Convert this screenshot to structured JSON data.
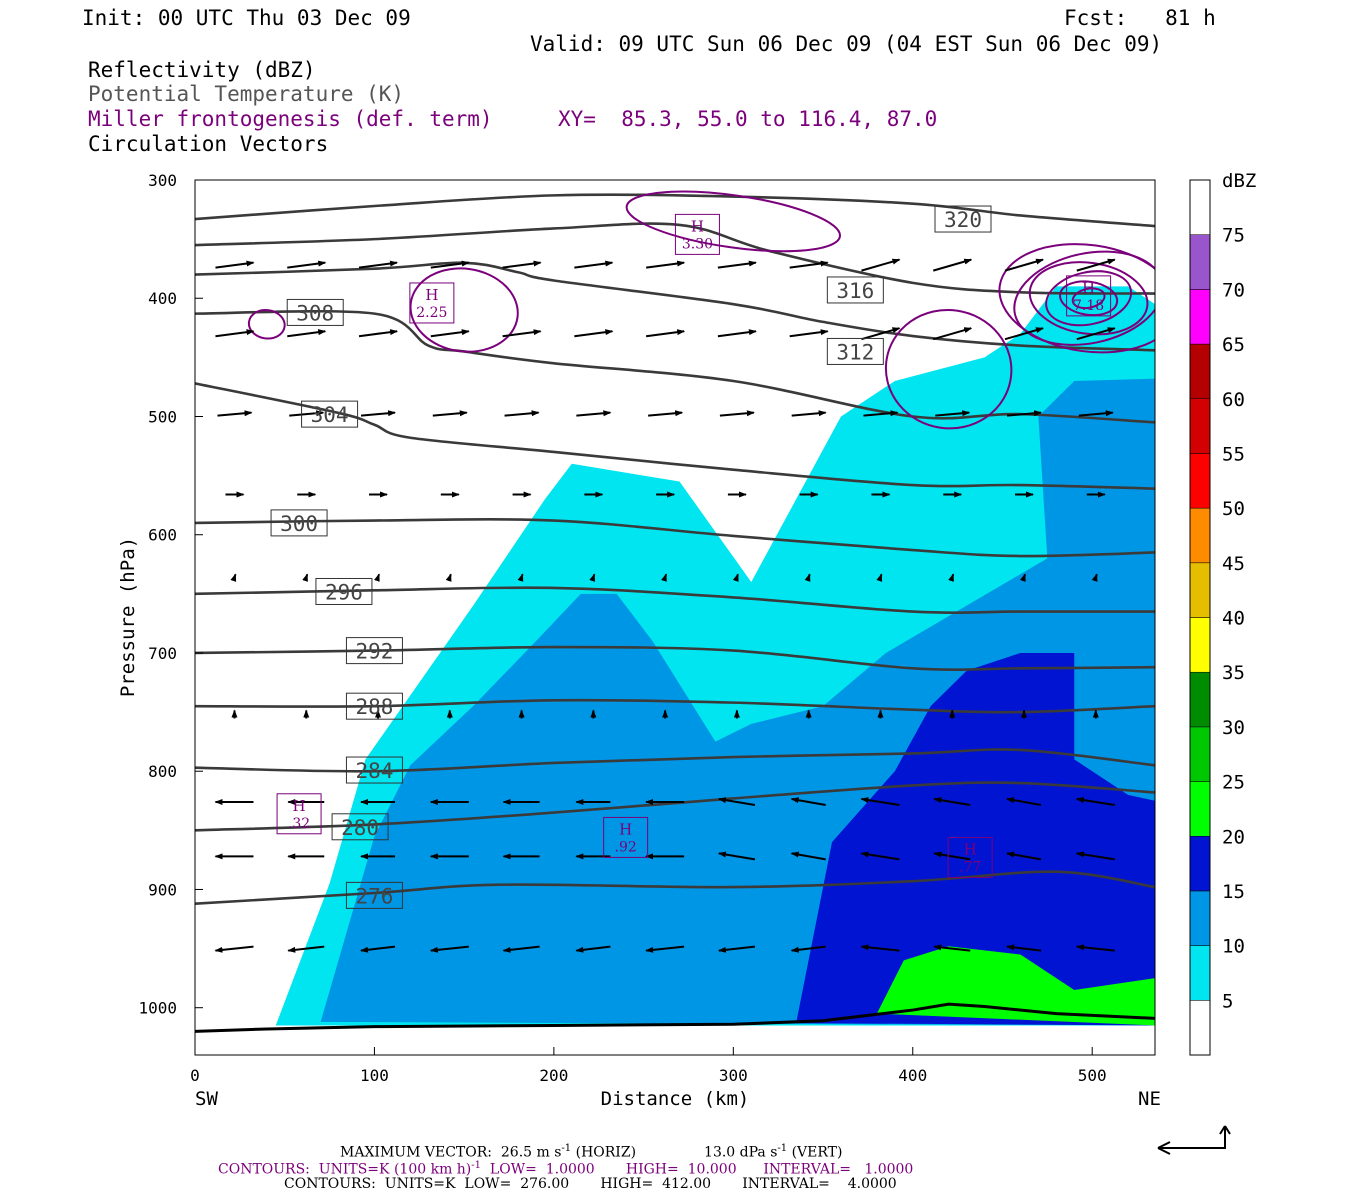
{
  "header": {
    "init": "Init: 00 UTC Thu 03 Dec 09",
    "fcst": "Fcst:   81 h",
    "valid": "Valid: 09 UTC Sun 06 Dec 09 (04 EST Sun 06 Dec 09)",
    "field1": "Reflectivity (dBZ)",
    "field2": "Potential Temperature (K)",
    "field3": "Miller frontogenesis (def. term)",
    "xy": "XY=  85.3, 55.0 to 116.4, 87.0",
    "field4": "Circulation Vectors"
  },
  "colors": {
    "theta": "#3a3a3a",
    "miller": "#7b007b",
    "field2_text": "#555555"
  },
  "colorbar": {
    "unit": "dBZ",
    "levels": [
      "5",
      "10",
      "15",
      "20",
      "25",
      "30",
      "35",
      "40",
      "45",
      "50",
      "55",
      "60",
      "65",
      "70",
      "75"
    ],
    "colors": [
      "#ffffff",
      "#00e5ef",
      "#0096e6",
      "#0014d2",
      "#00ff00",
      "#00c800",
      "#008c00",
      "#ffff00",
      "#e6be00",
      "#ff8c00",
      "#ff0000",
      "#d20000",
      "#b40000",
      "#ff00ff",
      "#9955cc",
      "#ffffff"
    ]
  },
  "chart_data": {
    "type": "cross-section",
    "xlabel": "Distance (km)",
    "ylabel": "Pressure (hPa)",
    "xlim": [
      0,
      535
    ],
    "ylim": [
      300,
      1040
    ],
    "x_ticks": [
      "0",
      "100",
      "200",
      "300",
      "400",
      "500"
    ],
    "y_ticks": [
      "300",
      "400",
      "500",
      "600",
      "700",
      "800",
      "900",
      "1000"
    ],
    "left_end_label": "SW",
    "right_end_label": "NE",
    "theta_contours": [
      {
        "label": "276",
        "points": [
          [
            0,
            912
          ],
          [
            100,
            903
          ],
          [
            170,
            896
          ],
          [
            300,
            898
          ],
          [
            400,
            893
          ],
          [
            480,
            885
          ],
          [
            535,
            898
          ]
        ],
        "label_at": [
          100,
          905
        ]
      },
      {
        "label": "280",
        "points": [
          [
            0,
            850
          ],
          [
            100,
            845
          ],
          [
            200,
            835
          ],
          [
            300,
            823
          ],
          [
            400,
            812
          ],
          [
            460,
            810
          ],
          [
            535,
            818
          ]
        ],
        "label_at": [
          92,
          847
        ]
      },
      {
        "label": "284",
        "points": [
          [
            0,
            797
          ],
          [
            100,
            800
          ],
          [
            200,
            793
          ],
          [
            300,
            788
          ],
          [
            400,
            785
          ],
          [
            460,
            782
          ],
          [
            535,
            795
          ]
        ],
        "label_at": [
          100,
          799
        ]
      },
      {
        "label": "288",
        "points": [
          [
            0,
            745
          ],
          [
            100,
            745
          ],
          [
            200,
            740
          ],
          [
            300,
            742
          ],
          [
            400,
            748
          ],
          [
            460,
            750
          ],
          [
            535,
            745
          ]
        ],
        "label_at": [
          100,
          745
        ]
      },
      {
        "label": "292",
        "points": [
          [
            0,
            700
          ],
          [
            100,
            698
          ],
          [
            200,
            695
          ],
          [
            300,
            698
          ],
          [
            400,
            713
          ],
          [
            460,
            713
          ],
          [
            535,
            712
          ]
        ],
        "label_at": [
          100,
          698
        ]
      },
      {
        "label": "296",
        "points": [
          [
            0,
            650
          ],
          [
            100,
            647
          ],
          [
            200,
            645
          ],
          [
            300,
            653
          ],
          [
            400,
            665
          ],
          [
            460,
            665
          ],
          [
            535,
            665
          ]
        ],
        "label_at": [
          83,
          648
        ]
      },
      {
        "label": "300",
        "points": [
          [
            0,
            590
          ],
          [
            100,
            588
          ],
          [
            200,
            588
          ],
          [
            300,
            601
          ],
          [
            400,
            613
          ],
          [
            460,
            618
          ],
          [
            535,
            615
          ]
        ],
        "label_at": [
          58,
          590
        ]
      },
      {
        "label": "304",
        "points": [
          [
            0,
            472
          ],
          [
            80,
            497
          ],
          [
            100,
            507
          ],
          [
            120,
            518
          ],
          [
            200,
            530
          ],
          [
            300,
            545
          ],
          [
            400,
            558
          ],
          [
            460,
            558
          ],
          [
            535,
            561
          ]
        ],
        "label_at": [
          75,
          498
        ]
      },
      {
        "label": "308",
        "points": [
          [
            0,
            413
          ],
          [
            100,
            413
          ],
          [
            130,
            440
          ],
          [
            150,
            445
          ],
          [
            200,
            455
          ],
          [
            300,
            470
          ],
          [
            400,
            500
          ],
          [
            460,
            498
          ],
          [
            535,
            505
          ]
        ],
        "label_at": [
          67,
          412
        ]
      },
      {
        "label": "312",
        "points": [
          [
            0,
            380
          ],
          [
            100,
            375
          ],
          [
            150,
            370
          ],
          [
            180,
            378
          ],
          [
            200,
            385
          ],
          [
            300,
            405
          ],
          [
            350,
            420
          ],
          [
            400,
            432
          ],
          [
            460,
            440
          ],
          [
            535,
            444
          ]
        ],
        "label_at": [
          368,
          445
        ]
      },
      {
        "label": "316",
        "points": [
          [
            0,
            355
          ],
          [
            100,
            350
          ],
          [
            200,
            341
          ],
          [
            270,
            338
          ],
          [
            320,
            360
          ],
          [
            400,
            387
          ],
          [
            460,
            395
          ],
          [
            535,
            396
          ]
        ],
        "label_at": [
          368,
          393
        ]
      },
      {
        "label": "320",
        "points": [
          [
            0,
            333
          ],
          [
            100,
            322
          ],
          [
            200,
            313
          ],
          [
            300,
            314
          ],
          [
            400,
            320
          ],
          [
            460,
            330
          ],
          [
            535,
            339
          ]
        ],
        "label_at": [
          428,
          333
        ]
      }
    ],
    "miller_maxima": [
      {
        "label": "H",
        "value": "3.30",
        "at": [
          280,
          346
        ]
      },
      {
        "label": "H",
        "value": "2.25",
        "at": [
          132,
          404
        ]
      },
      {
        "label": "H",
        "value": "7.18",
        "at": [
          498,
          398
        ]
      },
      {
        "label": "H",
        "value": ".32",
        "at": [
          58,
          836
        ]
      },
      {
        "label": "H",
        "value": ".92",
        "at": [
          240,
          856
        ]
      },
      {
        "label": "H",
        "value": ".77",
        "at": [
          432,
          873
        ]
      }
    ],
    "miller_contours_approx": [
      {
        "center": [
          498,
          400
        ],
        "rings": [
          [
            50,
            45
          ],
          [
            42,
            38
          ],
          [
            33,
            30
          ],
          [
            24,
            22
          ],
          [
            16,
            14
          ],
          [
            9,
            8
          ]
        ]
      },
      {
        "center": [
          150,
          410
        ],
        "rings": [
          [
            30,
            35
          ]
        ]
      },
      {
        "center": [
          300,
          335
        ],
        "rings": [
          [
            60,
            22
          ]
        ]
      },
      {
        "center": [
          40,
          422
        ],
        "rings": [
          [
            10,
            12
          ]
        ]
      },
      {
        "center": [
          420,
          460
        ],
        "rings": [
          [
            35,
            50
          ]
        ]
      }
    ],
    "reflectivity_dbz_regions": [
      {
        "dbz": 5,
        "outline": [
          [
            45,
            1015
          ],
          [
            75,
            895
          ],
          [
            95,
            790
          ],
          [
            155,
            660
          ],
          [
            195,
            570
          ],
          [
            210,
            540
          ],
          [
            270,
            555
          ],
          [
            310,
            640
          ],
          [
            360,
            500
          ],
          [
            390,
            470
          ],
          [
            440,
            450
          ],
          [
            460,
            430
          ],
          [
            480,
            390
          ],
          [
            520,
            390
          ],
          [
            535,
            405
          ],
          [
            535,
            1015
          ]
        ]
      },
      {
        "dbz": 10,
        "outline": [
          [
            70,
            1012
          ],
          [
            100,
            855
          ],
          [
            120,
            795
          ],
          [
            155,
            745
          ],
          [
            190,
            690
          ],
          [
            215,
            650
          ],
          [
            235,
            650
          ],
          [
            255,
            690
          ],
          [
            290,
            775
          ],
          [
            310,
            760
          ],
          [
            350,
            745
          ],
          [
            385,
            700
          ],
          [
            430,
            660
          ],
          [
            475,
            620
          ],
          [
            470,
            500
          ],
          [
            490,
            470
          ],
          [
            535,
            468
          ],
          [
            535,
            1015
          ]
        ]
      },
      {
        "dbz": 15,
        "outline": [
          [
            335,
            1013
          ],
          [
            355,
            860
          ],
          [
            390,
            800
          ],
          [
            410,
            745
          ],
          [
            430,
            715
          ],
          [
            460,
            700
          ],
          [
            490,
            700
          ],
          [
            490,
            790
          ],
          [
            520,
            820
          ],
          [
            535,
            825
          ],
          [
            535,
            1015
          ]
        ]
      },
      {
        "dbz": 20,
        "outline": [
          [
            380,
            1005
          ],
          [
            395,
            960
          ],
          [
            420,
            948
          ],
          [
            460,
            955
          ],
          [
            490,
            985
          ],
          [
            535,
            975
          ],
          [
            535,
            1015
          ]
        ]
      }
    ],
    "vector_rows_hpa": [
      372,
      430,
      498,
      566,
      636,
      752,
      826,
      872,
      950
    ],
    "legend_vector_label": "MAXIMUM VECTOR:  26.5 m s",
    "legend_vector_horiz": " (HORIZ)",
    "legend_vector_vert": "13.0 dPa s",
    "legend_vector_vert_tail": " (VERT)",
    "legend_vector_exp": "-1",
    "contours_miller_a": "CONTOURS:  UNITS=K (100 km h)",
    "contours_miller_exp": "-1",
    "contours_miller_b": "  LOW=  1.0000       HIGH=  10.000      INTERVAL=   1.0000",
    "contours_theta": "CONTOURS:  UNITS=K  LOW=  276.00       HIGH=  412.00       INTERVAL=    4.0000"
  }
}
